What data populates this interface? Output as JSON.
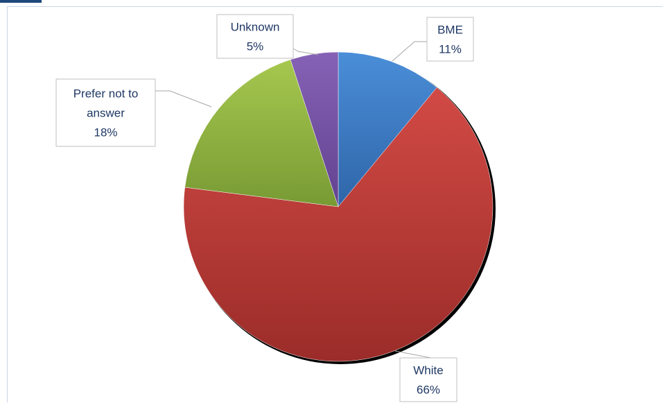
{
  "chart_data": {
    "type": "pie",
    "title": "",
    "categories": [
      "BME",
      "White",
      "Prefer not to answer",
      "Unknown"
    ],
    "values": [
      11,
      66,
      18,
      5
    ],
    "value_format": "percent",
    "start_angle": "12 o'clock",
    "direction": "clockwise",
    "legend": "none",
    "data_labels": [
      {
        "name": "BME",
        "value": "11%"
      },
      {
        "name": "White",
        "value": "66%"
      },
      {
        "name": "Prefer not to",
        "name2": "answer",
        "value": "18%"
      },
      {
        "name": "Unknown",
        "value": "5%"
      }
    ]
  },
  "colors": {
    "BME": "#3c7cc6",
    "White": "#c23b37",
    "Prefer not to answer": "#8fb341",
    "Unknown": "#7452a3",
    "accent": "#1f497d",
    "label_text": "#1f3864"
  }
}
